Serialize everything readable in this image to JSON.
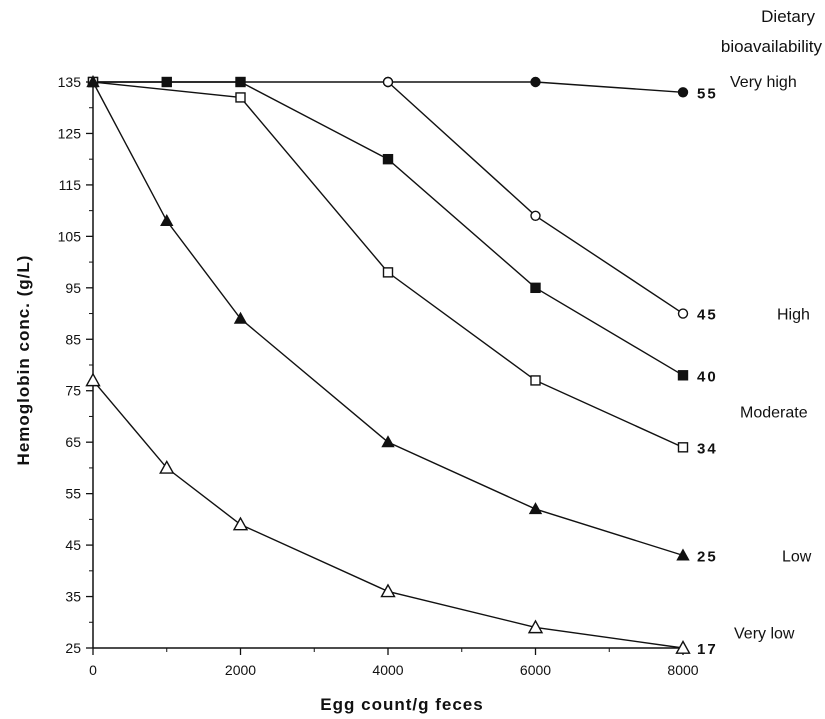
{
  "chart_data": {
    "type": "line",
    "xlabel": "Egg count/g feces",
    "ylabel": "Hemoglobin conc. (g/L)",
    "xlim": [
      0,
      8000
    ],
    "ylim": [
      25,
      135
    ],
    "x_ticks": [
      0,
      2000,
      4000,
      6000,
      8000
    ],
    "y_ticks": [
      25,
      35,
      45,
      55,
      65,
      75,
      85,
      95,
      105,
      115,
      125,
      135
    ],
    "legend_title_lines": [
      "Dietary",
      "bioavailability"
    ],
    "series": [
      {
        "name": "55",
        "category": "Very high",
        "marker": "filled-circle",
        "x": [
          0,
          4000,
          6000,
          8000
        ],
        "y": [
          135,
          135,
          135,
          133
        ]
      },
      {
        "name": "45",
        "category": "High",
        "marker": "open-circle",
        "x": [
          4000,
          6000,
          8000
        ],
        "y": [
          135,
          109,
          90
        ]
      },
      {
        "name": "40",
        "category": "",
        "marker": "filled-square",
        "x": [
          0,
          1000,
          2000,
          4000,
          6000,
          8000
        ],
        "y": [
          135,
          135,
          135,
          120,
          95,
          78
        ]
      },
      {
        "name": "34",
        "category": "Moderate",
        "marker": "open-square",
        "x": [
          0,
          2000,
          4000,
          6000,
          8000
        ],
        "y": [
          135,
          132,
          98,
          77,
          64
        ]
      },
      {
        "name": "25",
        "category": "Low",
        "marker": "filled-triangle",
        "x": [
          0,
          1000,
          2000,
          4000,
          6000,
          8000
        ],
        "y": [
          135,
          108,
          89,
          65,
          52,
          43
        ]
      },
      {
        "name": "17",
        "category": "Very low",
        "marker": "open-triangle",
        "x": [
          0,
          1000,
          2000,
          4000,
          6000,
          8000
        ],
        "y": [
          77,
          60,
          49,
          36,
          29,
          25
        ]
      }
    ]
  }
}
